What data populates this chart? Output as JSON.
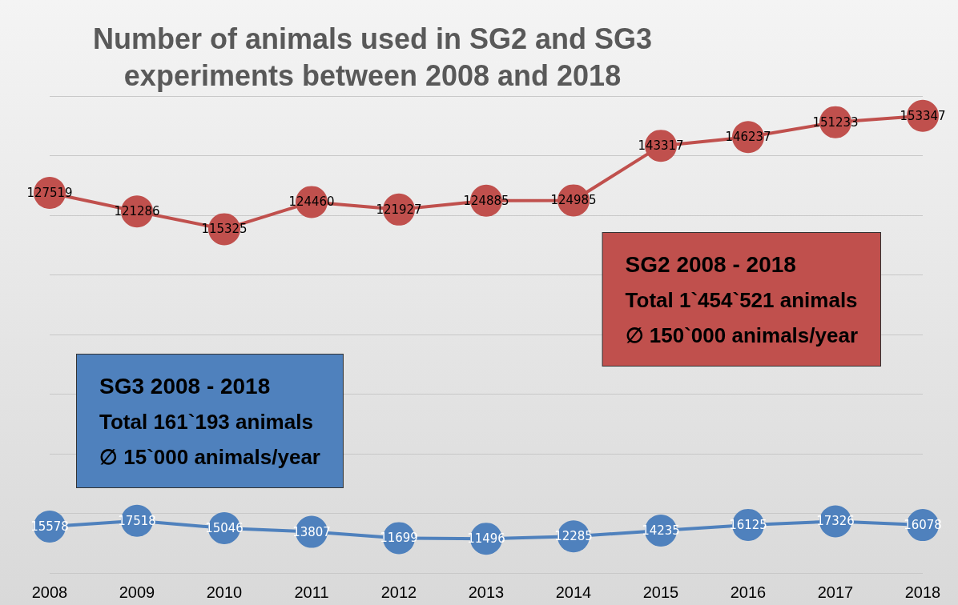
{
  "chart_data": {
    "type": "line",
    "title": "Number of animals used in SG2 and SG3\nexperiments between 2008 and 2018",
    "categories": [
      "2008",
      "2009",
      "2010",
      "2011",
      "2012",
      "2013",
      "2014",
      "2015",
      "2016",
      "2017",
      "2018"
    ],
    "series": [
      {
        "color": "#c0504d",
        "values": [
          127519,
          121286,
          115325,
          124460,
          121927,
          124885,
          124985,
          143317,
          146237,
          151233,
          153347
        ]
      },
      {
        "color": "#4f81bd",
        "values": [
          15578,
          17518,
          15046,
          13807,
          11699,
          11496,
          12285,
          14235,
          16125,
          17326,
          16078
        ]
      }
    ],
    "ylim": [
      0,
      160000
    ],
    "yticks": [
      {
        "value": 0,
        "label": null
      },
      {
        "value": 20000,
        "label": null
      },
      {
        "value": 40000,
        "label": null
      },
      {
        "value": 60000,
        "label": null
      },
      {
        "value": 80000,
        "label": null
      },
      {
        "value": 100000,
        "label": null
      },
      {
        "value": 120000,
        "label": null
      },
      {
        "value": 140000,
        "label": null
      },
      {
        "value": 160000,
        "label": null
      }
    ],
    "grid": "y",
    "marker": "circle",
    "line_style": "solid",
    "data_labels": true,
    "annotations": [
      "SG2 2008 - 2018\nTotal 1`454`521 animals\n∅ 150`000 animals/year",
      "SG3 2008 - 2018\nTotal 161`193 animals\n∅ 15`000 animals/year"
    ]
  }
}
